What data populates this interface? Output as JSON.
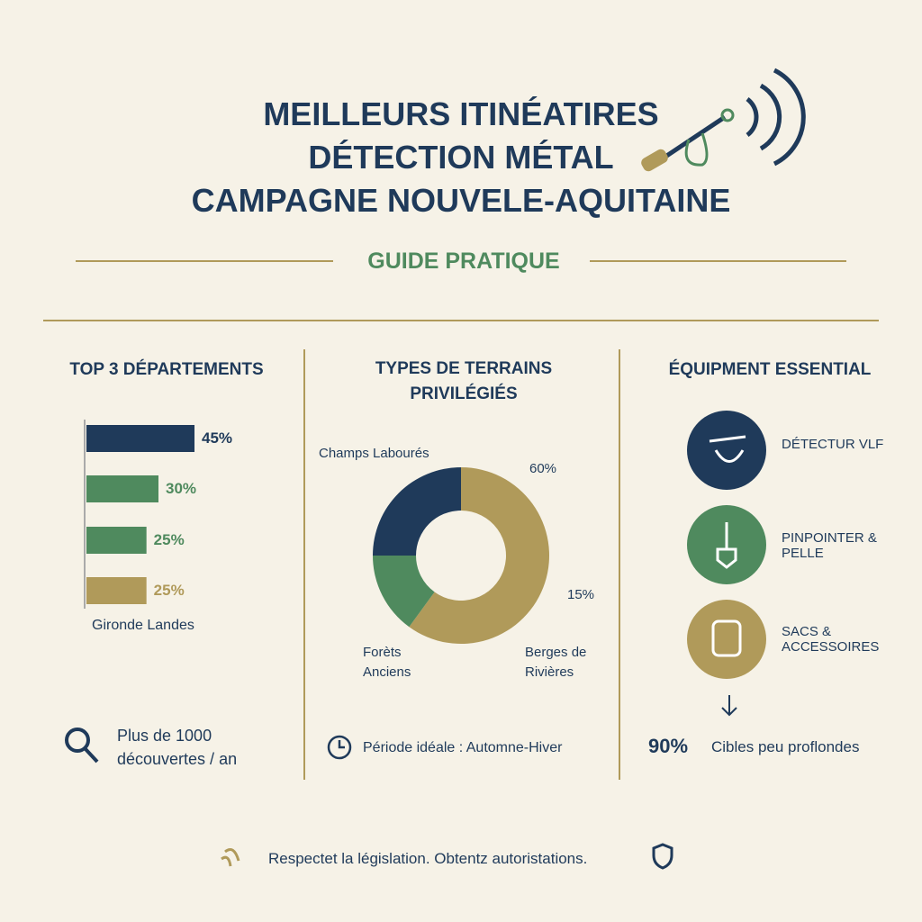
{
  "header": {
    "title_lines": [
      "MEILLEURS ITINÉATIRES",
      "DÉTECTION MÉTAL",
      "CAMPAGNE NOUVELE-AQUITAINE"
    ],
    "subtitle": "GUIDE PRATIQUE"
  },
  "chart_data": [
    {
      "type": "bar",
      "title": "TOP 3 DÉPARTEMENTS",
      "categories": [
        null,
        null,
        null,
        null
      ],
      "values": [
        45,
        30,
        25,
        25
      ],
      "value_labels": [
        "45%",
        "30%",
        "25%",
        "25%"
      ],
      "colors": [
        "#1f3a5a",
        "#4f8a5e",
        "#4f8a5e",
        "#b09a5a"
      ],
      "caption": "Gironde Landes"
    },
    {
      "type": "pie",
      "title": "TYPES DE TERRAINS PRIVILÉGIÉS",
      "categories": [
        "Champs Labourés",
        "Berges de Rivières",
        "Forèts Anciens"
      ],
      "values": [
        60,
        15,
        25
      ],
      "value_labels": [
        "60%",
        "15%",
        null
      ],
      "colors": [
        "#b09a5a",
        "#4f8a5e",
        "#1f3a5a"
      ]
    }
  ],
  "stats": {
    "discoveries": "Plus de 1000 découvertes / an",
    "period": "Période idéale : Automne-Hiver"
  },
  "equipment": {
    "title": "ÉQUIPMENT ESSENTIAL",
    "items": [
      "DÉTECTUR VLF",
      "PINPOINTER & PELLE",
      "SACS & ACCESSOIRES"
    ],
    "stat_value": "90%",
    "stat_text": "Cibles peu proflondes"
  },
  "footer": "Respectet la législation. Obtentz autoristations."
}
